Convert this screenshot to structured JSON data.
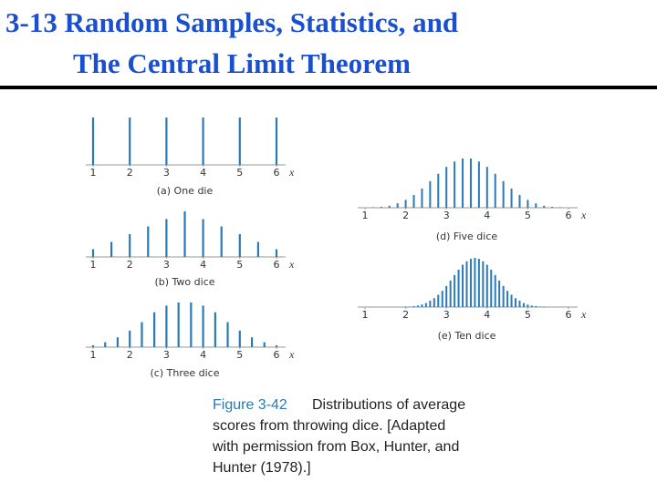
{
  "title": [
    "3-13 Random Samples, Statistics, and",
    "The Central Limit Theorem"
  ],
  "figure_label": "Figure 3-42",
  "figure_caption": [
    "Distributions of average",
    "scores from throwing dice. [Adapted",
    "with permission from Box, Hunter, and",
    "Hunter (1978).]"
  ],
  "chart_data": [
    {
      "type": "bar",
      "caption": "(a) One die",
      "xlabel": "x",
      "color": "#2a7ab8",
      "x": [
        1,
        2,
        3,
        4,
        5,
        6
      ],
      "values": [
        100,
        100,
        100,
        100,
        100,
        100
      ],
      "xlim": [
        1,
        6
      ],
      "xticks": [
        1,
        2,
        3,
        4,
        5,
        6
      ],
      "ylim": [
        0,
        100
      ]
    },
    {
      "type": "bar",
      "caption": "(b) Two dice",
      "xlabel": "x",
      "color": "#2a7ab8",
      "x": [
        1,
        1.5,
        2,
        2.5,
        3,
        3.5,
        4,
        4.5,
        5,
        5.5,
        6
      ],
      "values": [
        17,
        33,
        50,
        67,
        83,
        100,
        83,
        67,
        50,
        33,
        17
      ],
      "xlim": [
        1,
        6
      ],
      "xticks": [
        1,
        2,
        3,
        4,
        5,
        6
      ],
      "ylim": [
        0,
        100
      ]
    },
    {
      "type": "bar",
      "caption": "(c) Three dice",
      "xlabel": "x",
      "color": "#2a7ab8",
      "x": [
        1,
        1.33,
        1.67,
        2,
        2.33,
        2.67,
        3,
        3.33,
        3.67,
        4,
        4.33,
        4.67,
        5,
        5.33,
        5.67,
        6
      ],
      "values": [
        4,
        11,
        22,
        37,
        56,
        78,
        93,
        100,
        100,
        93,
        78,
        56,
        37,
        22,
        11,
        4
      ],
      "xlim": [
        1,
        6
      ],
      "xticks": [
        1,
        2,
        3,
        4,
        5,
        6
      ],
      "ylim": [
        0,
        100
      ]
    },
    {
      "type": "bar",
      "caption": "(d) Five dice",
      "xlabel": "x",
      "color": "#2a7ab8",
      "x": [
        1,
        1.2,
        1.4,
        1.6,
        1.8,
        2,
        2.2,
        2.4,
        2.6,
        2.8,
        3,
        3.2,
        3.4,
        3.6,
        3.8,
        4,
        4.2,
        4.4,
        4.6,
        4.8,
        5,
        5.2,
        5.4,
        5.6,
        5.8,
        6
      ],
      "values": [
        0,
        1,
        2,
        4,
        9,
        16,
        26,
        39,
        54,
        69,
        83,
        94,
        100,
        100,
        94,
        83,
        69,
        54,
        39,
        26,
        16,
        9,
        4,
        2,
        1,
        0
      ],
      "xlim": [
        1,
        6
      ],
      "xticks": [
        1,
        2,
        3,
        4,
        5,
        6
      ],
      "ylim": [
        0,
        100
      ]
    },
    {
      "type": "bar",
      "caption": "(e) Ten dice",
      "xlabel": "x",
      "color": "#2a7ab8",
      "x": [
        1,
        1.1,
        1.2,
        1.3,
        1.4,
        1.5,
        1.6,
        1.7,
        1.8,
        1.9,
        2,
        2.1,
        2.2,
        2.3,
        2.4,
        2.5,
        2.6,
        2.7,
        2.8,
        2.9,
        3,
        3.1,
        3.2,
        3.3,
        3.4,
        3.5,
        3.6,
        3.7,
        3.8,
        3.9,
        4,
        4.1,
        4.2,
        4.3,
        4.4,
        4.5,
        4.6,
        4.7,
        4.8,
        4.9,
        5,
        5.1,
        5.2,
        5.3,
        5.4,
        5.5,
        5.6,
        5.7,
        5.8,
        5.9,
        6
      ],
      "values": [
        0,
        0,
        0,
        0,
        0,
        0,
        0,
        0,
        0,
        0,
        1,
        1,
        2,
        3,
        5,
        8,
        13,
        18,
        25,
        33,
        43,
        54,
        65,
        76,
        86,
        93,
        98,
        100,
        98,
        93,
        86,
        76,
        65,
        54,
        43,
        33,
        25,
        18,
        13,
        8,
        5,
        3,
        2,
        1,
        1,
        0,
        0,
        0,
        0,
        0,
        0
      ],
      "xlim": [
        1,
        6
      ],
      "xticks": [
        1,
        2,
        3,
        4,
        5,
        6
      ],
      "ylim": [
        0,
        100
      ]
    }
  ]
}
